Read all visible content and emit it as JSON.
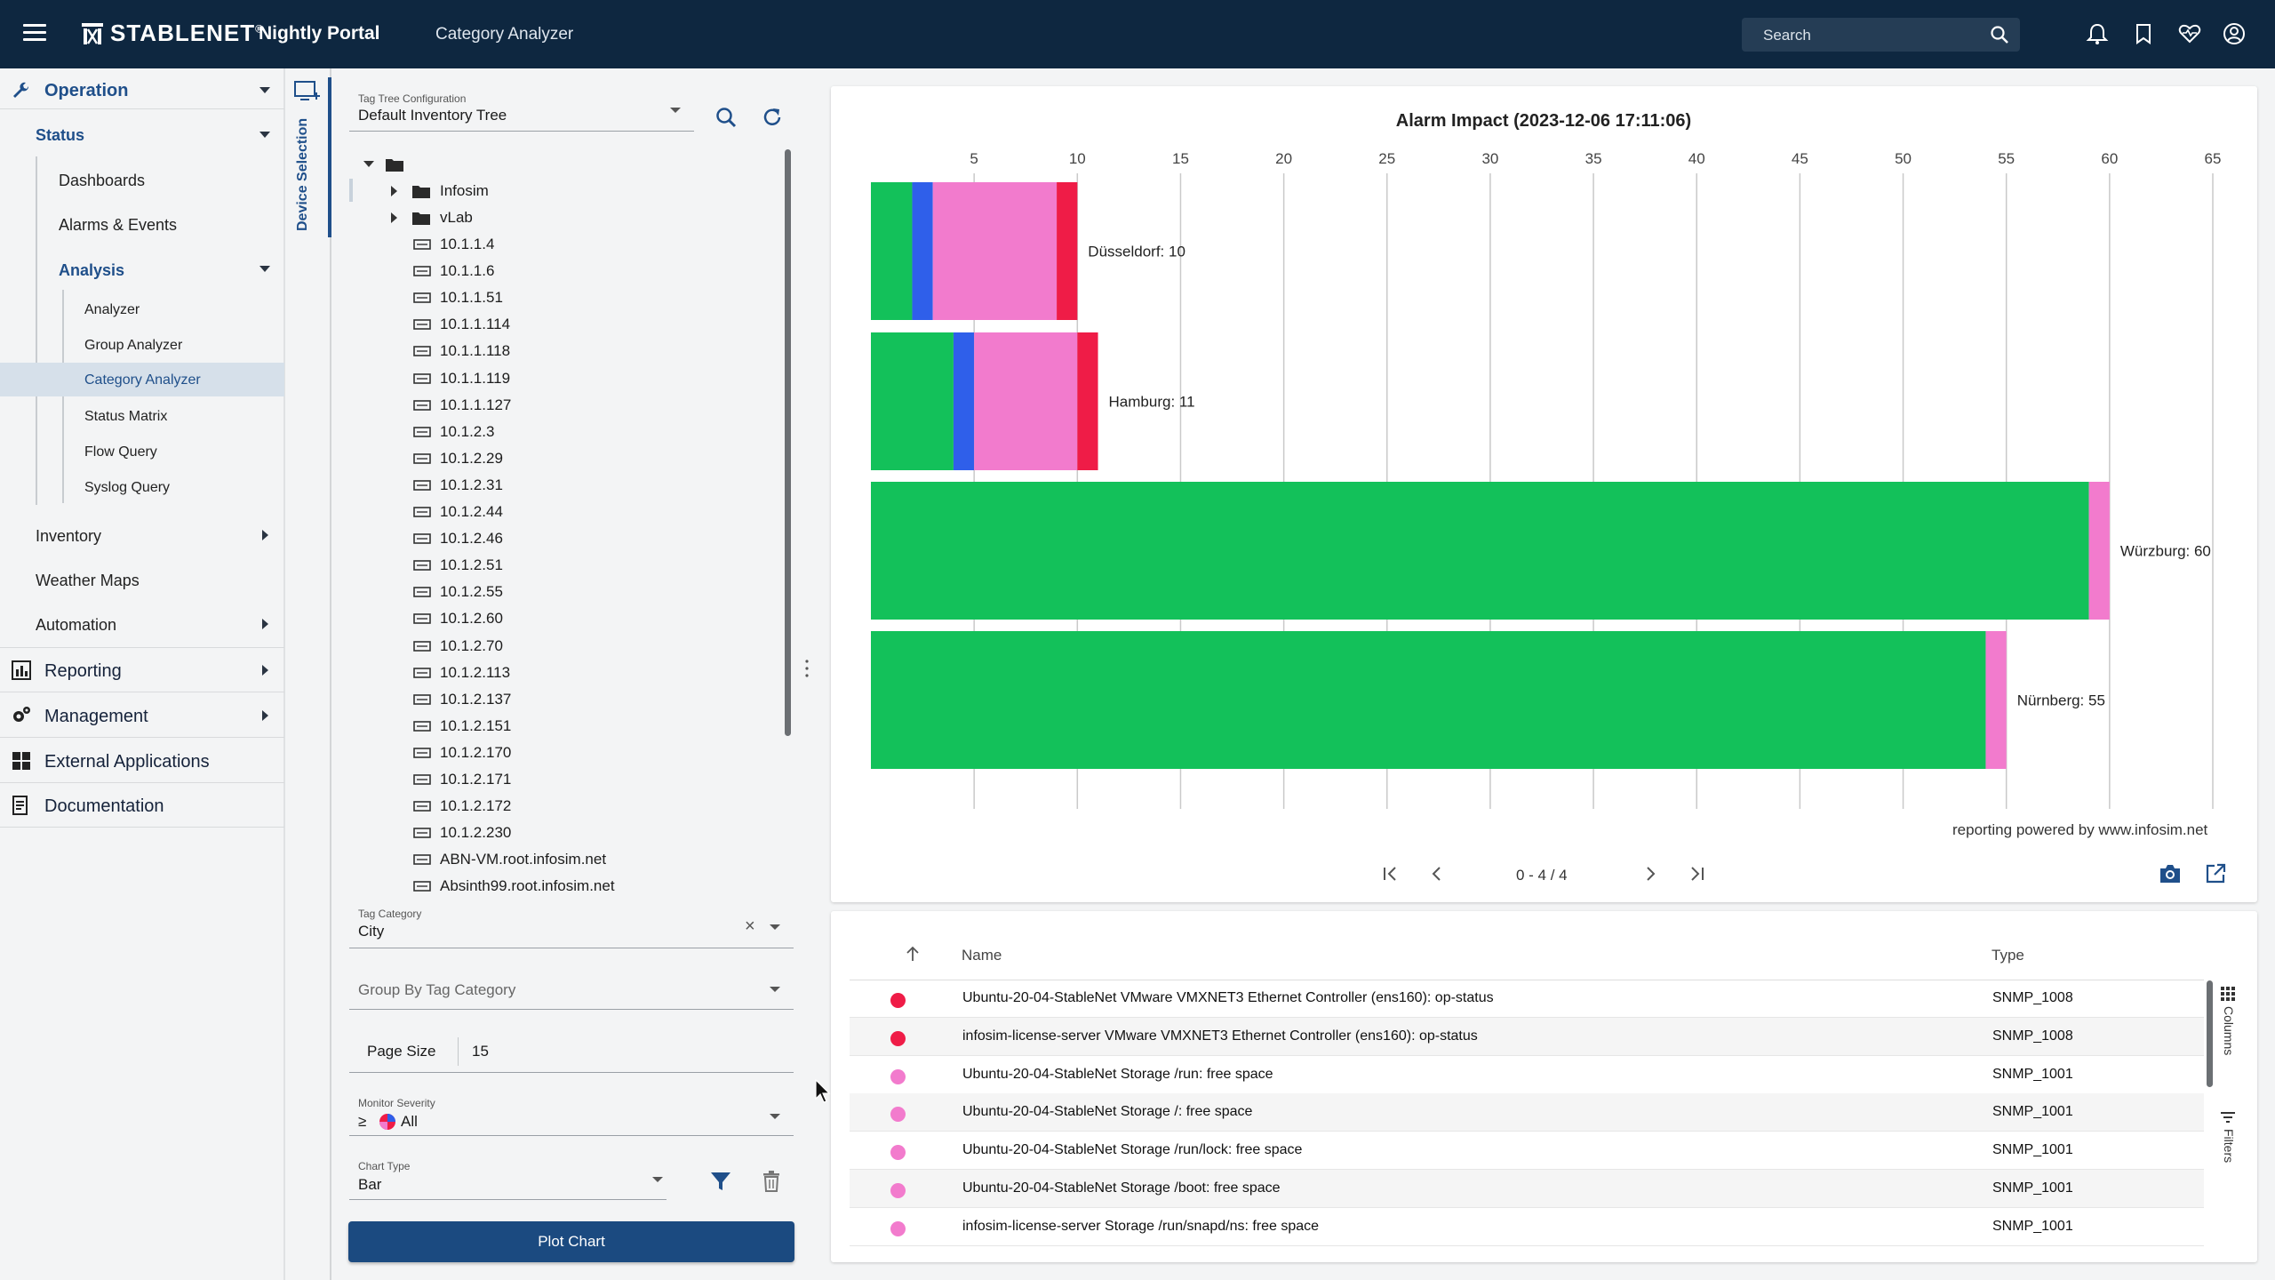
{
  "header": {
    "brand": "STABLENET",
    "brand_mark": "®",
    "product": "Nightly Portal",
    "page": "Category Analyzer",
    "search_placeholder": "Search",
    "icons": [
      "bell-icon",
      "bookmark-icon",
      "heart-monitor-icon",
      "account-icon"
    ]
  },
  "nav": {
    "operation": "Operation",
    "status": "Status",
    "dashboards": "Dashboards",
    "alarms_events": "Alarms & Events",
    "analysis": "Analysis",
    "analyzer": "Analyzer",
    "group_analyzer": "Group Analyzer",
    "category_analyzer": "Category Analyzer",
    "status_matrix": "Status Matrix",
    "flow_query": "Flow Query",
    "syslog_query": "Syslog Query",
    "inventory": "Inventory",
    "weather_maps": "Weather Maps",
    "automation": "Automation",
    "reporting": "Reporting",
    "management": "Management",
    "external_applications": "External Applications",
    "documentation": "Documentation"
  },
  "device_selection": {
    "tab_label": "Device Selection",
    "tag_tree_config_label": "Tag Tree Configuration",
    "tag_tree_config_value": "Default Inventory Tree",
    "tree": {
      "folders": [
        "Infosim",
        "vLab"
      ],
      "devices": [
        "10.1.1.4",
        "10.1.1.6",
        "10.1.1.51",
        "10.1.1.114",
        "10.1.1.118",
        "10.1.1.119",
        "10.1.1.127",
        "10.1.2.3",
        "10.1.2.29",
        "10.1.2.31",
        "10.1.2.44",
        "10.1.2.46",
        "10.1.2.51",
        "10.1.2.55",
        "10.1.2.60",
        "10.1.2.70",
        "10.1.2.113",
        "10.1.2.137",
        "10.1.2.151",
        "10.1.2.170",
        "10.1.2.171",
        "10.1.2.172",
        "10.1.2.230",
        "ABN-VM.root.infosim.net",
        "Absinth99.root.infosim.net"
      ]
    },
    "tag_category_label": "Tag Category",
    "tag_category_value": "City",
    "group_by_placeholder": "Group By Tag Category",
    "page_size_label": "Page Size",
    "page_size_value": "15",
    "monitor_severity_label": "Monitor Severity",
    "monitor_severity_op": "≥",
    "monitor_severity_value": "All",
    "chart_type_label": "Chart Type",
    "chart_type_value": "Bar",
    "plot_button": "Plot Chart"
  },
  "chart": {
    "powered_by": "reporting powered by www.infosim.net",
    "pager_text": "0 - 4 / 4",
    "colors": {
      "green": "#13c15a",
      "blue": "#2f5fea",
      "pink": "#f27bcd",
      "red": "#ef1c47"
    }
  },
  "chart_data": {
    "type": "bar",
    "orientation": "horizontal",
    "stacked": true,
    "title": "Alarm Impact (2023-12-06 17:11:06)",
    "x_ticks": [
      5,
      10,
      15,
      20,
      25,
      30,
      35,
      40,
      45,
      50,
      55,
      60,
      65
    ],
    "xlim": [
      0,
      65
    ],
    "grid": true,
    "categories": [
      "Düsseldorf",
      "Hamburg",
      "Würzburg",
      "Nürnberg"
    ],
    "bar_labels": [
      "Düsseldorf: 10",
      "Hamburg: 11",
      "Würzburg: 60",
      "Nürnberg: 55"
    ],
    "series": [
      {
        "color": "#13c15a",
        "values": [
          2,
          4,
          59,
          54
        ]
      },
      {
        "color": "#2f5fea",
        "values": [
          1,
          1,
          0,
          0
        ]
      },
      {
        "color": "#f27bcd",
        "values": [
          6,
          5,
          1,
          1
        ]
      },
      {
        "color": "#ef1c47",
        "values": [
          1,
          1,
          0,
          0
        ]
      }
    ]
  },
  "table": {
    "col_name": "Name",
    "col_type": "Type",
    "columns_tool": "Columns",
    "filters_tool": "Filters",
    "rows": [
      {
        "severity_color": "#ef1c47",
        "name": "Ubuntu-20-04-StableNet VMware VMXNET3 Ethernet Controller (ens160): op-status",
        "type": "SNMP_1008"
      },
      {
        "severity_color": "#ef1c47",
        "name": "infosim-license-server VMware VMXNET3 Ethernet Controller (ens160): op-status",
        "type": "SNMP_1008"
      },
      {
        "severity_color": "#f27bcd",
        "name": "Ubuntu-20-04-StableNet Storage /run: free space",
        "type": "SNMP_1001"
      },
      {
        "severity_color": "#f27bcd",
        "name": "Ubuntu-20-04-StableNet Storage /: free space",
        "type": "SNMP_1001"
      },
      {
        "severity_color": "#f27bcd",
        "name": "Ubuntu-20-04-StableNet Storage /run/lock: free space",
        "type": "SNMP_1001"
      },
      {
        "severity_color": "#f27bcd",
        "name": "Ubuntu-20-04-StableNet Storage /boot: free space",
        "type": "SNMP_1001"
      },
      {
        "severity_color": "#f27bcd",
        "name": "infosim-license-server Storage /run/snapd/ns: free space",
        "type": "SNMP_1001"
      }
    ]
  }
}
